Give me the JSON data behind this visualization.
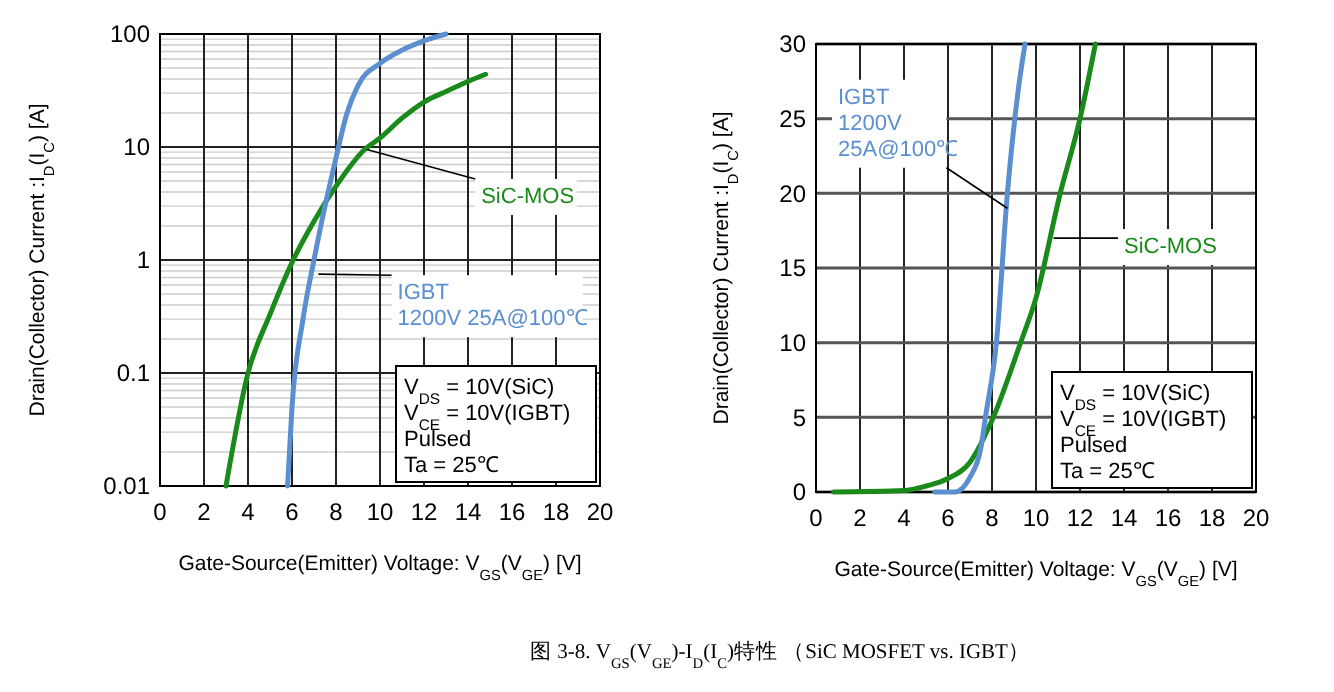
{
  "chart_data": [
    {
      "type": "line",
      "xlabel": "Gate-Source(Emitter) Voltage: V$_{GS}$(V$_{GE}$) [V]",
      "ylabel": "Drain(Collector) Current :I$_{D}$(I$_{C}$) [A]",
      "log": "y",
      "xlim": [
        0,
        20
      ],
      "ylim": [
        0.01,
        100
      ],
      "xticks": [
        0,
        2,
        4,
        6,
        8,
        10,
        12,
        14,
        16,
        18,
        20
      ],
      "yticks": [
        0.01,
        0.1,
        1,
        10,
        100
      ],
      "grid": true,
      "marker": "none",
      "line_style": "solid",
      "series": [
        {
          "name": "SiC-MOS",
          "color": "#1a8a1a",
          "x": [
            3,
            4,
            5,
            6,
            7,
            8,
            9.3,
            10,
            11,
            12,
            13,
            14,
            14.8
          ],
          "values": [
            0.01,
            0.1,
            0.33,
            0.95,
            2.2,
            4.5,
            9.5,
            12,
            18,
            25,
            31,
            38,
            44
          ]
        },
        {
          "name": "IGBT",
          "color": "#5b8fd0",
          "x": [
            5.8,
            6,
            6.5,
            7,
            7.5,
            8,
            8.5,
            9,
            10,
            11,
            12,
            13
          ],
          "values": [
            0.01,
            0.05,
            0.3,
            1,
            3,
            8,
            20,
            35,
            55,
            72,
            87,
            100
          ]
        }
      ],
      "annotations": [
        "1200V 25A@100℃",
        "V$_{DS}$ = 10V(SiC)",
        "V$_{CE}$ = 10V(IGBT)",
        "Pulsed",
        "Ta = 25℃",
        "图 3-8. V$_{GS}$(V$_{GE}$)-I$_{D}$(I$_{C}$)特性 （SiC MOSFET vs. IGBT）"
      ]
    },
    {
      "type": "line",
      "xlabel": "Gate-Source(Emitter) Voltage: V$_{GS}$(V$_{GE}$) [V]",
      "ylabel": "Drain(Collector) Current :I$_{D}$(I$_{C}$) [A]",
      "xlim": [
        0,
        20
      ],
      "ylim": [
        0,
        30
      ],
      "xticks": [
        0,
        2,
        4,
        6,
        8,
        10,
        12,
        14,
        16,
        18,
        20
      ],
      "yticks": [
        0,
        5,
        10,
        15,
        20,
        25,
        30
      ],
      "grid": true,
      "marker": "none",
      "line_style": "solid",
      "series": [
        {
          "name": "SiC-MOS",
          "color": "#1a8a1a",
          "x": [
            0.8,
            4,
            5,
            6,
            7,
            8,
            9.3,
            10,
            11.1,
            12,
            12.7
          ],
          "values": [
            0,
            0.1,
            0.4,
            0.9,
            2,
            4.8,
            10,
            13,
            20,
            25,
            30
          ]
        },
        {
          "name": "IGBT",
          "color": "#5b8fd0",
          "x": [
            5.4,
            6.3,
            7,
            7.5,
            7.7,
            8.2,
            8.7,
            9.2,
            9.5
          ],
          "values": [
            0,
            0,
            1,
            3,
            5,
            10,
            20,
            27,
            30
          ]
        }
      ],
      "annotations": [
        "1200V 25A@100℃",
        "V$_{DS}$ = 10V(SiC)",
        "V$_{CE}$ = 10V(IGBT)",
        "Pulsed",
        "Ta = 25℃"
      ]
    }
  ]
}
